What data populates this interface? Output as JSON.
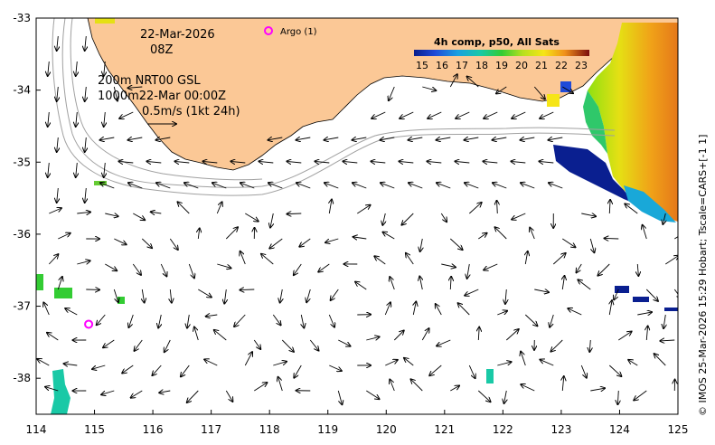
{
  "map": {
    "date": "22-Mar-2026",
    "hour": "08Z",
    "contour_label_line1": "200m  NRT00 GSL",
    "contour_label_line2": "1000m22-Mar 00:00Z",
    "scale_label": "0.5m/s (1kt 24h)",
    "argo_label": "Argo (1)",
    "credit": "© IMOS 25-Mar-2026 15:29 Hobart; Tscale=CARS+[-1 1]",
    "colorbar": {
      "title": "4h comp, p50, All Sats",
      "ticks": [
        "15",
        "16",
        "17",
        "18",
        "19",
        "20",
        "21",
        "22",
        "23"
      ]
    },
    "axes": {
      "x_ticks": [
        "114",
        "115",
        "116",
        "117",
        "118",
        "119",
        "120",
        "121",
        "122",
        "123",
        "124",
        "125"
      ],
      "y_ticks": [
        "-33",
        "-34",
        "-35",
        "-36",
        "-37",
        "-38"
      ],
      "lon_range": [
        114,
        125
      ],
      "lat_range": [
        -38.5,
        -33
      ]
    },
    "argo_floats": [
      {
        "lon": 114.9,
        "lat": -37.25
      }
    ],
    "colors": {
      "land": "#fbc896",
      "ocean": "#ffffff",
      "argo": "#ff00ff"
    }
  }
}
